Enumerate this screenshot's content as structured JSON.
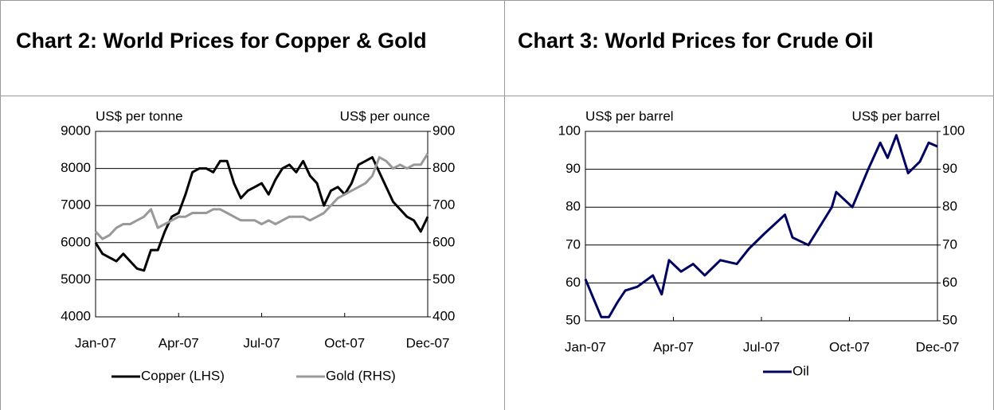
{
  "chart_data": [
    {
      "type": "line",
      "title": "Chart 2: World Prices for Copper & Gold",
      "ylabel": "US$ per tonne",
      "y2label": "US$ per ounce",
      "x": [
        0,
        0.25,
        0.5,
        0.75,
        1,
        1.25,
        1.5,
        1.75,
        2,
        2.25,
        2.5,
        2.75,
        3,
        3.25,
        3.5,
        3.75,
        4,
        4.25,
        4.5,
        4.75,
        5,
        5.25,
        5.5,
        5.75,
        6,
        6.25,
        6.5,
        6.75,
        7,
        7.25,
        7.5,
        7.75,
        8,
        8.25,
        8.5,
        8.75,
        9,
        9.25,
        9.5,
        9.75,
        10,
        10.25,
        10.5,
        10.75,
        11,
        11.25,
        11.5,
        11.75,
        12
      ],
      "xlim": [
        0,
        12
      ],
      "xticks": [
        {
          "value": 0,
          "label": "Jan-07"
        },
        {
          "value": 3,
          "label": "Apr-07"
        },
        {
          "value": 6,
          "label": "Jul-07"
        },
        {
          "value": 9,
          "label": "Oct-07"
        },
        {
          "value": 12,
          "label": "Dec-07"
        }
      ],
      "ylim": [
        4000,
        9000
      ],
      "yticks": [
        4000,
        5000,
        6000,
        7000,
        8000,
        9000
      ],
      "y2lim": [
        400,
        900
      ],
      "y2ticks": [
        400,
        500,
        600,
        700,
        800,
        900
      ],
      "grid": true,
      "series": [
        {
          "name": "Copper (LHS)",
          "color": "#000000",
          "values": [
            6000,
            5700,
            5600,
            5500,
            5700,
            5500,
            5300,
            5250,
            5800,
            5800,
            6300,
            6700,
            6800,
            7300,
            7900,
            8000,
            8000,
            7900,
            8200,
            8200,
            7600,
            7200,
            7400,
            7500,
            7600,
            7300,
            7700,
            8000,
            8100,
            7900,
            8200,
            7800,
            7600,
            7000,
            7400,
            7500,
            7300,
            7600,
            8100,
            8200,
            8300,
            7900,
            7500,
            7100,
            6900,
            6700,
            6600,
            6300,
            6700
          ]
        },
        {
          "name": "Gold (RHS)",
          "color": "#999999",
          "axis": "y2",
          "values": [
            630,
            610,
            620,
            640,
            650,
            650,
            660,
            670,
            690,
            640,
            650,
            660,
            670,
            670,
            680,
            680,
            680,
            690,
            690,
            680,
            670,
            660,
            660,
            660,
            650,
            660,
            650,
            660,
            670,
            670,
            670,
            660,
            670,
            680,
            700,
            720,
            730,
            740,
            750,
            760,
            780,
            830,
            820,
            800,
            810,
            800,
            810,
            810,
            840
          ]
        }
      ]
    },
    {
      "type": "line",
      "title": "Chart 3: World Prices for Crude Oil",
      "ylabel": "US$ per barrel",
      "y2label": "US$ per barrel",
      "x": [
        0,
        0.27,
        0.54,
        0.8,
        1.1,
        1.36,
        1.77,
        2.3,
        2.6,
        2.85,
        3.26,
        3.67,
        4.07,
        4.6,
        5.16,
        5.57,
        6.1,
        6.8,
        7.06,
        7.6,
        8,
        8.4,
        8.55,
        9.1,
        9.64,
        10.05,
        10.3,
        10.6,
        11,
        11.4,
        11.7,
        12
      ],
      "xlim": [
        0,
        12
      ],
      "xticks": [
        {
          "value": 0,
          "label": "Jan-07"
        },
        {
          "value": 3,
          "label": "Apr-07"
        },
        {
          "value": 6,
          "label": "Jul-07"
        },
        {
          "value": 9,
          "label": "Oct-07"
        },
        {
          "value": 12,
          "label": "Dec-07"
        }
      ],
      "ylim": [
        50,
        100
      ],
      "yticks": [
        50,
        60,
        70,
        80,
        90,
        100
      ],
      "y2lim": [
        50,
        100
      ],
      "y2ticks": [
        50,
        60,
        70,
        80,
        90,
        100
      ],
      "grid": true,
      "series": [
        {
          "name": "Oil",
          "color": "#000060",
          "values": [
            61,
            56,
            51,
            51,
            55,
            58,
            59,
            62,
            57,
            66,
            63,
            65,
            62,
            66,
            65,
            69,
            73,
            78,
            72,
            70,
            75,
            80,
            84,
            80,
            90,
            97,
            93,
            99,
            89,
            92,
            97,
            96
          ]
        }
      ]
    }
  ]
}
